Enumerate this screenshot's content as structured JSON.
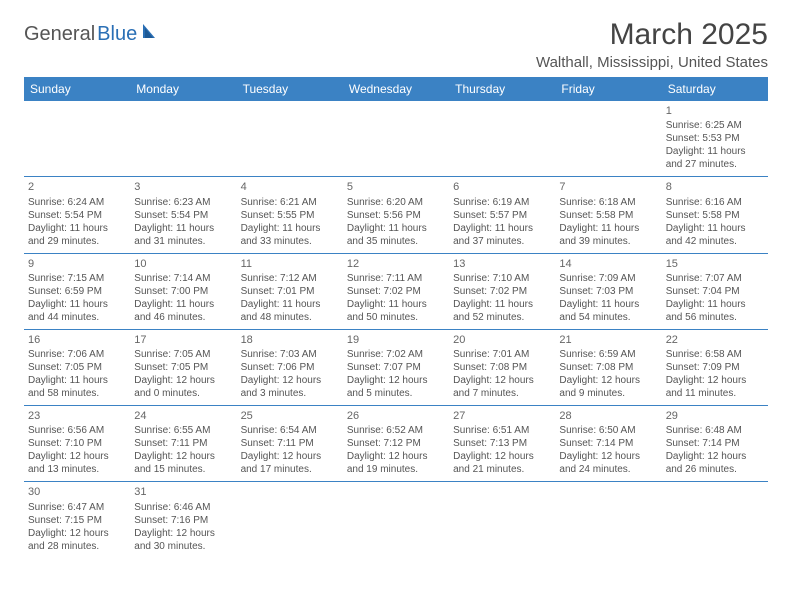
{
  "brand": {
    "part1": "General",
    "part2": "Blue"
  },
  "title": "March 2025",
  "location": "Walthall, Mississippi, United States",
  "colors": {
    "header_bg": "#3b82c4",
    "header_text": "#ffffff",
    "border": "#3b82c4",
    "text": "#555555",
    "brand_grey": "#555555",
    "brand_blue": "#2a6fb5"
  },
  "day_headers": [
    "Sunday",
    "Monday",
    "Tuesday",
    "Wednesday",
    "Thursday",
    "Friday",
    "Saturday"
  ],
  "weeks": [
    [
      null,
      null,
      null,
      null,
      null,
      null,
      {
        "n": "1",
        "sunrise": "Sunrise: 6:25 AM",
        "sunset": "Sunset: 5:53 PM",
        "daylight": "Daylight: 11 hours and 27 minutes."
      }
    ],
    [
      {
        "n": "2",
        "sunrise": "Sunrise: 6:24 AM",
        "sunset": "Sunset: 5:54 PM",
        "daylight": "Daylight: 11 hours and 29 minutes."
      },
      {
        "n": "3",
        "sunrise": "Sunrise: 6:23 AM",
        "sunset": "Sunset: 5:54 PM",
        "daylight": "Daylight: 11 hours and 31 minutes."
      },
      {
        "n": "4",
        "sunrise": "Sunrise: 6:21 AM",
        "sunset": "Sunset: 5:55 PM",
        "daylight": "Daylight: 11 hours and 33 minutes."
      },
      {
        "n": "5",
        "sunrise": "Sunrise: 6:20 AM",
        "sunset": "Sunset: 5:56 PM",
        "daylight": "Daylight: 11 hours and 35 minutes."
      },
      {
        "n": "6",
        "sunrise": "Sunrise: 6:19 AM",
        "sunset": "Sunset: 5:57 PM",
        "daylight": "Daylight: 11 hours and 37 minutes."
      },
      {
        "n": "7",
        "sunrise": "Sunrise: 6:18 AM",
        "sunset": "Sunset: 5:58 PM",
        "daylight": "Daylight: 11 hours and 39 minutes."
      },
      {
        "n": "8",
        "sunrise": "Sunrise: 6:16 AM",
        "sunset": "Sunset: 5:58 PM",
        "daylight": "Daylight: 11 hours and 42 minutes."
      }
    ],
    [
      {
        "n": "9",
        "sunrise": "Sunrise: 7:15 AM",
        "sunset": "Sunset: 6:59 PM",
        "daylight": "Daylight: 11 hours and 44 minutes."
      },
      {
        "n": "10",
        "sunrise": "Sunrise: 7:14 AM",
        "sunset": "Sunset: 7:00 PM",
        "daylight": "Daylight: 11 hours and 46 minutes."
      },
      {
        "n": "11",
        "sunrise": "Sunrise: 7:12 AM",
        "sunset": "Sunset: 7:01 PM",
        "daylight": "Daylight: 11 hours and 48 minutes."
      },
      {
        "n": "12",
        "sunrise": "Sunrise: 7:11 AM",
        "sunset": "Sunset: 7:02 PM",
        "daylight": "Daylight: 11 hours and 50 minutes."
      },
      {
        "n": "13",
        "sunrise": "Sunrise: 7:10 AM",
        "sunset": "Sunset: 7:02 PM",
        "daylight": "Daylight: 11 hours and 52 minutes."
      },
      {
        "n": "14",
        "sunrise": "Sunrise: 7:09 AM",
        "sunset": "Sunset: 7:03 PM",
        "daylight": "Daylight: 11 hours and 54 minutes."
      },
      {
        "n": "15",
        "sunrise": "Sunrise: 7:07 AM",
        "sunset": "Sunset: 7:04 PM",
        "daylight": "Daylight: 11 hours and 56 minutes."
      }
    ],
    [
      {
        "n": "16",
        "sunrise": "Sunrise: 7:06 AM",
        "sunset": "Sunset: 7:05 PM",
        "daylight": "Daylight: 11 hours and 58 minutes."
      },
      {
        "n": "17",
        "sunrise": "Sunrise: 7:05 AM",
        "sunset": "Sunset: 7:05 PM",
        "daylight": "Daylight: 12 hours and 0 minutes."
      },
      {
        "n": "18",
        "sunrise": "Sunrise: 7:03 AM",
        "sunset": "Sunset: 7:06 PM",
        "daylight": "Daylight: 12 hours and 3 minutes."
      },
      {
        "n": "19",
        "sunrise": "Sunrise: 7:02 AM",
        "sunset": "Sunset: 7:07 PM",
        "daylight": "Daylight: 12 hours and 5 minutes."
      },
      {
        "n": "20",
        "sunrise": "Sunrise: 7:01 AM",
        "sunset": "Sunset: 7:08 PM",
        "daylight": "Daylight: 12 hours and 7 minutes."
      },
      {
        "n": "21",
        "sunrise": "Sunrise: 6:59 AM",
        "sunset": "Sunset: 7:08 PM",
        "daylight": "Daylight: 12 hours and 9 minutes."
      },
      {
        "n": "22",
        "sunrise": "Sunrise: 6:58 AM",
        "sunset": "Sunset: 7:09 PM",
        "daylight": "Daylight: 12 hours and 11 minutes."
      }
    ],
    [
      {
        "n": "23",
        "sunrise": "Sunrise: 6:56 AM",
        "sunset": "Sunset: 7:10 PM",
        "daylight": "Daylight: 12 hours and 13 minutes."
      },
      {
        "n": "24",
        "sunrise": "Sunrise: 6:55 AM",
        "sunset": "Sunset: 7:11 PM",
        "daylight": "Daylight: 12 hours and 15 minutes."
      },
      {
        "n": "25",
        "sunrise": "Sunrise: 6:54 AM",
        "sunset": "Sunset: 7:11 PM",
        "daylight": "Daylight: 12 hours and 17 minutes."
      },
      {
        "n": "26",
        "sunrise": "Sunrise: 6:52 AM",
        "sunset": "Sunset: 7:12 PM",
        "daylight": "Daylight: 12 hours and 19 minutes."
      },
      {
        "n": "27",
        "sunrise": "Sunrise: 6:51 AM",
        "sunset": "Sunset: 7:13 PM",
        "daylight": "Daylight: 12 hours and 21 minutes."
      },
      {
        "n": "28",
        "sunrise": "Sunrise: 6:50 AM",
        "sunset": "Sunset: 7:14 PM",
        "daylight": "Daylight: 12 hours and 24 minutes."
      },
      {
        "n": "29",
        "sunrise": "Sunrise: 6:48 AM",
        "sunset": "Sunset: 7:14 PM",
        "daylight": "Daylight: 12 hours and 26 minutes."
      }
    ],
    [
      {
        "n": "30",
        "sunrise": "Sunrise: 6:47 AM",
        "sunset": "Sunset: 7:15 PM",
        "daylight": "Daylight: 12 hours and 28 minutes."
      },
      {
        "n": "31",
        "sunrise": "Sunrise: 6:46 AM",
        "sunset": "Sunset: 7:16 PM",
        "daylight": "Daylight: 12 hours and 30 minutes."
      },
      null,
      null,
      null,
      null,
      null
    ]
  ]
}
